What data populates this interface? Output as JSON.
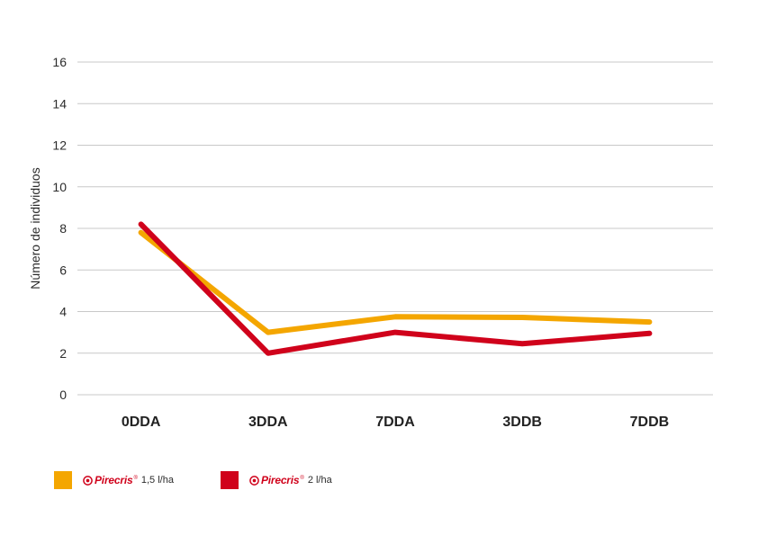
{
  "chart_data": {
    "type": "line",
    "title": "",
    "xlabel": "",
    "ylabel": "Número de individuos",
    "categories": [
      "0DDA",
      "3DDA",
      "7DDA",
      "3DDB",
      "7DDB"
    ],
    "ylim": [
      0,
      16
    ],
    "yticks": [
      0,
      2,
      4,
      6,
      8,
      10,
      12,
      14,
      16
    ],
    "grid": true,
    "legend_position": "bottom-left",
    "series": [
      {
        "brand": "Pirecris",
        "dose": "1,5 l/ha",
        "color": "#F4A600",
        "values": [
          7.8,
          3.0,
          3.75,
          3.72,
          3.5
        ]
      },
      {
        "brand": "Pirecris",
        "dose": "2 l/ha",
        "color": "#D0021B",
        "values": [
          8.2,
          2.0,
          3.0,
          2.45,
          2.95
        ]
      }
    ]
  },
  "legend": {
    "items": [
      {
        "brand": "Pirecris",
        "reg": "®",
        "dose": "1,5 l/ha",
        "color": "#F4A600"
      },
      {
        "brand": "Pirecris",
        "reg": "®",
        "dose": "2 l/ha",
        "color": "#D0021B"
      }
    ]
  },
  "icons": {
    "brand_logo": "pirecris-logo-icon"
  }
}
